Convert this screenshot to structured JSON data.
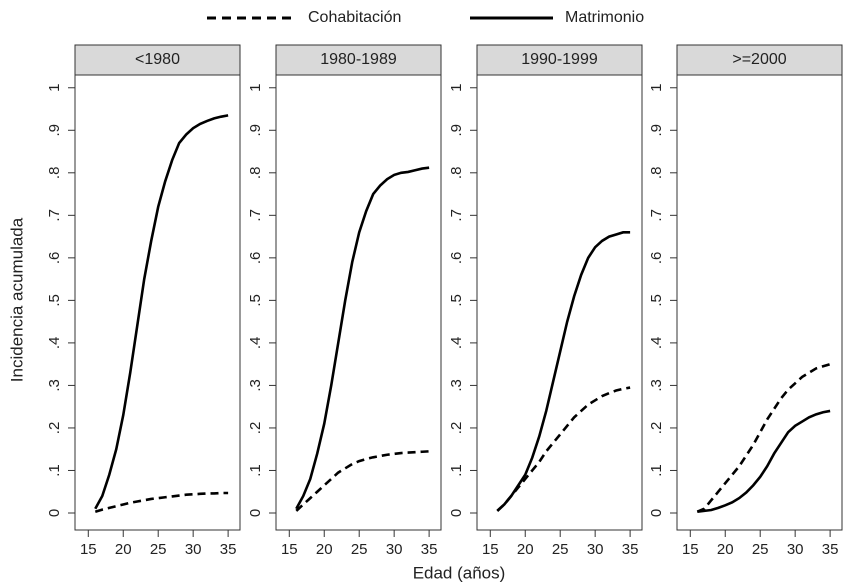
{
  "chart_data": [
    {
      "type": "line",
      "title": "<1980",
      "ylabel": "Incidencia acumulada",
      "xlabel": "Edad (años)",
      "x": [
        16,
        17,
        18,
        19,
        20,
        21,
        22,
        23,
        24,
        25,
        26,
        27,
        28,
        29,
        30,
        31,
        32,
        33,
        34,
        35
      ],
      "series": [
        {
          "name": "Cohabitación",
          "color": "#000000",
          "style": "dashed",
          "values": [
            0.003,
            0.008,
            0.012,
            0.016,
            0.02,
            0.024,
            0.027,
            0.03,
            0.033,
            0.035,
            0.037,
            0.039,
            0.041,
            0.043,
            0.044,
            0.045,
            0.046,
            0.046,
            0.047,
            0.047
          ]
        },
        {
          "name": "Matrimonio",
          "color": "#000000",
          "style": "solid",
          "values": [
            0.01,
            0.04,
            0.09,
            0.15,
            0.23,
            0.33,
            0.44,
            0.55,
            0.64,
            0.72,
            0.78,
            0.83,
            0.87,
            0.89,
            0.905,
            0.915,
            0.922,
            0.928,
            0.932,
            0.935
          ]
        }
      ],
      "xlim": [
        13.1,
        36.7
      ],
      "ylim": [
        -0.04,
        1.03
      ],
      "xticks": [
        15,
        20,
        25,
        30,
        35
      ],
      "yticks": [
        0,
        {
          "value": 0.1,
          "label": ".1"
        },
        {
          "value": 0.2,
          "label": ".2"
        },
        {
          "value": 0.3,
          "label": ".3"
        },
        {
          "value": 0.4,
          "label": ".4"
        },
        {
          "value": 0.5,
          "label": ".5"
        },
        {
          "value": 0.6,
          "label": ".6"
        },
        {
          "value": 0.7,
          "label": ".7"
        },
        {
          "value": 0.8,
          "label": ".8"
        },
        {
          "value": 0.9,
          "label": ".9"
        },
        1
      ]
    },
    {
      "type": "line",
      "title": "1980-1989",
      "x": [
        16,
        17,
        18,
        19,
        20,
        21,
        22,
        23,
        24,
        25,
        26,
        27,
        28,
        29,
        30,
        31,
        32,
        33,
        34,
        35
      ],
      "series": [
        {
          "name": "Cohabitación",
          "color": "#000000",
          "style": "dashed",
          "values": [
            0.005,
            0.02,
            0.035,
            0.05,
            0.065,
            0.08,
            0.095,
            0.105,
            0.115,
            0.122,
            0.127,
            0.131,
            0.134,
            0.137,
            0.139,
            0.141,
            0.142,
            0.143,
            0.144,
            0.145
          ]
        },
        {
          "name": "Matrimonio",
          "color": "#000000",
          "style": "solid",
          "values": [
            0.01,
            0.04,
            0.08,
            0.14,
            0.21,
            0.3,
            0.4,
            0.5,
            0.59,
            0.66,
            0.71,
            0.75,
            0.77,
            0.785,
            0.795,
            0.8,
            0.802,
            0.806,
            0.81,
            0.812
          ]
        }
      ],
      "xlim": [
        13.1,
        36.7
      ],
      "ylim": [
        -0.04,
        1.03
      ],
      "xticks": [
        15,
        20,
        25,
        30,
        35
      ],
      "yticks": [
        0,
        {
          "value": 0.1,
          "label": ".1"
        },
        {
          "value": 0.2,
          "label": ".2"
        },
        {
          "value": 0.3,
          "label": ".3"
        },
        {
          "value": 0.4,
          "label": ".4"
        },
        {
          "value": 0.5,
          "label": ".5"
        },
        {
          "value": 0.6,
          "label": ".6"
        },
        {
          "value": 0.7,
          "label": ".7"
        },
        {
          "value": 0.8,
          "label": ".8"
        },
        {
          "value": 0.9,
          "label": ".9"
        },
        1
      ]
    },
    {
      "type": "line",
      "title": "1990-1999",
      "x": [
        16,
        17,
        18,
        19,
        20,
        21,
        22,
        23,
        24,
        25,
        26,
        27,
        28,
        29,
        30,
        31,
        32,
        33,
        34,
        35
      ],
      "series": [
        {
          "name": "Cohabitación",
          "color": "#000000",
          "style": "dashed",
          "values": [
            0.005,
            0.02,
            0.04,
            0.06,
            0.08,
            0.1,
            0.12,
            0.145,
            0.165,
            0.185,
            0.205,
            0.225,
            0.24,
            0.255,
            0.265,
            0.275,
            0.282,
            0.288,
            0.292,
            0.295
          ]
        },
        {
          "name": "Matrimonio",
          "color": "#000000",
          "style": "solid",
          "values": [
            0.005,
            0.02,
            0.04,
            0.065,
            0.09,
            0.13,
            0.18,
            0.24,
            0.31,
            0.38,
            0.45,
            0.51,
            0.56,
            0.6,
            0.625,
            0.64,
            0.65,
            0.655,
            0.66,
            0.66
          ]
        }
      ],
      "xlim": [
        13.1,
        36.7
      ],
      "ylim": [
        -0.04,
        1.03
      ],
      "xticks": [
        15,
        20,
        25,
        30,
        35
      ],
      "yticks": [
        0,
        {
          "value": 0.1,
          "label": ".1"
        },
        {
          "value": 0.2,
          "label": ".2"
        },
        {
          "value": 0.3,
          "label": ".3"
        },
        {
          "value": 0.4,
          "label": ".4"
        },
        {
          "value": 0.5,
          "label": ".5"
        },
        {
          "value": 0.6,
          "label": ".6"
        },
        {
          "value": 0.7,
          "label": ".7"
        },
        {
          "value": 0.8,
          "label": ".8"
        },
        {
          "value": 0.9,
          "label": ".9"
        },
        1
      ]
    },
    {
      "type": "line",
      "title": ">=2000",
      "x": [
        16,
        17,
        18,
        19,
        20,
        21,
        22,
        23,
        24,
        25,
        26,
        27,
        28,
        29,
        30,
        31,
        32,
        33,
        34,
        35
      ],
      "series": [
        {
          "name": "Cohabitación",
          "color": "#000000",
          "style": "dashed",
          "values": [
            0.003,
            0.01,
            0.03,
            0.05,
            0.07,
            0.09,
            0.11,
            0.135,
            0.16,
            0.19,
            0.22,
            0.245,
            0.27,
            0.29,
            0.305,
            0.32,
            0.33,
            0.34,
            0.345,
            0.35
          ]
        },
        {
          "name": "Matrimonio",
          "color": "#000000",
          "style": "solid",
          "values": [
            0.003,
            0.005,
            0.007,
            0.012,
            0.018,
            0.025,
            0.035,
            0.048,
            0.065,
            0.085,
            0.11,
            0.14,
            0.165,
            0.19,
            0.205,
            0.215,
            0.225,
            0.232,
            0.237,
            0.24
          ]
        }
      ],
      "xlim": [
        13.1,
        36.7
      ],
      "ylim": [
        -0.04,
        1.03
      ],
      "xticks": [
        15,
        20,
        25,
        30,
        35
      ],
      "yticks": [
        0,
        {
          "value": 0.1,
          "label": ".1"
        },
        {
          "value": 0.2,
          "label": ".2"
        },
        {
          "value": 0.3,
          "label": ".3"
        },
        {
          "value": 0.4,
          "label": ".4"
        },
        {
          "value": 0.5,
          "label": ".5"
        },
        {
          "value": 0.6,
          "label": ".6"
        },
        {
          "value": 0.7,
          "label": ".7"
        },
        {
          "value": 0.8,
          "label": ".8"
        },
        {
          "value": 0.9,
          "label": ".9"
        },
        1
      ]
    }
  ]
}
